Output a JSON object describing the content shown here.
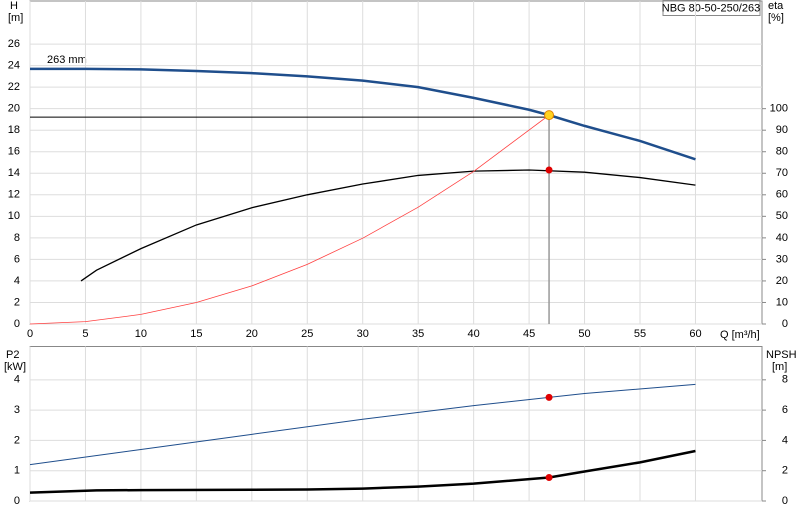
{
  "chart_data": [
    {
      "type": "line",
      "title": "NBG 80-50-250/263",
      "annotation": "263 mm",
      "ylabel": "H",
      "yunit": "[m]",
      "y2label": "eta",
      "y2unit": "[%]",
      "xlabel": "Q [m³/h]",
      "xlim": [
        0,
        66
      ],
      "xticks": [
        0,
        5,
        10,
        15,
        20,
        25,
        30,
        35,
        40,
        45,
        50,
        55,
        60
      ],
      "ylim": [
        0,
        30
      ],
      "yticks": [
        0,
        2,
        4,
        6,
        8,
        10,
        12,
        14,
        16,
        18,
        20,
        22,
        24,
        26
      ],
      "y2lim": [
        0,
        150
      ],
      "y2ticks": [
        0,
        10,
        20,
        30,
        40,
        50,
        60,
        70,
        80,
        90,
        100
      ],
      "grid": true,
      "series": [
        {
          "color": "#1f4e8c",
          "x": [
            0,
            5,
            10,
            15,
            20,
            25,
            30,
            35,
            40,
            45,
            46.8,
            50,
            55,
            60
          ],
          "values": [
            23.7,
            23.7,
            23.65,
            23.5,
            23.3,
            23.0,
            22.6,
            22.0,
            21.0,
            19.9,
            19.4,
            18.4,
            17.0,
            15.3
          ]
        },
        {
          "color": "#000000",
          "axis": "y2",
          "x": [
            4.6,
            6,
            10,
            15,
            20,
            25,
            30,
            35,
            40,
            45,
            50,
            55,
            60
          ],
          "values": [
            20,
            25,
            35,
            46,
            54,
            60,
            65,
            69,
            71,
            71.5,
            70.5,
            68,
            64.5
          ]
        },
        {
          "color": "#ff4040",
          "x": [
            0,
            5,
            10,
            15,
            20,
            25,
            30,
            35,
            40,
            46.8
          ],
          "values": [
            0,
            0.22,
            0.89,
            2.0,
            3.54,
            5.54,
            7.97,
            10.85,
            14.17,
            19.4
          ]
        }
      ],
      "duty": {
        "x": 46.8,
        "y": 19.4,
        "y2": 71.5,
        "color": "#ffd21f",
        "y2_color": "#e00000"
      }
    },
    {
      "type": "line",
      "ylabel": "P2",
      "yunit": "[kW]",
      "y2label": "NPSH",
      "y2unit": "[m]",
      "xlim": [
        0,
        66
      ],
      "ylim": [
        0,
        5.1
      ],
      "yticks": [
        0,
        1,
        2,
        3,
        4
      ],
      "y2lim": [
        0,
        10.2
      ],
      "y2ticks": [
        0,
        2,
        4,
        6,
        8
      ],
      "grid": true,
      "series": [
        {
          "color": "#1f4e8c",
          "x": [
            0,
            10,
            20,
            30,
            40,
            46.8,
            50,
            60
          ],
          "values": [
            1.2,
            1.7,
            2.2,
            2.7,
            3.15,
            3.42,
            3.55,
            3.85
          ]
        },
        {
          "color": "#000000",
          "axis": "y2",
          "x": [
            0,
            6,
            10,
            20,
            25,
            30,
            35,
            40,
            46.8,
            50,
            55,
            60
          ],
          "values": [
            0.55,
            0.7,
            0.72,
            0.74,
            0.76,
            0.82,
            0.95,
            1.15,
            1.55,
            1.95,
            2.55,
            3.3
          ]
        }
      ],
      "duty": {
        "x": 46.8,
        "y": 3.42,
        "y2": 1.55,
        "color": "#e00000",
        "y2_color": "#e00000"
      }
    }
  ]
}
